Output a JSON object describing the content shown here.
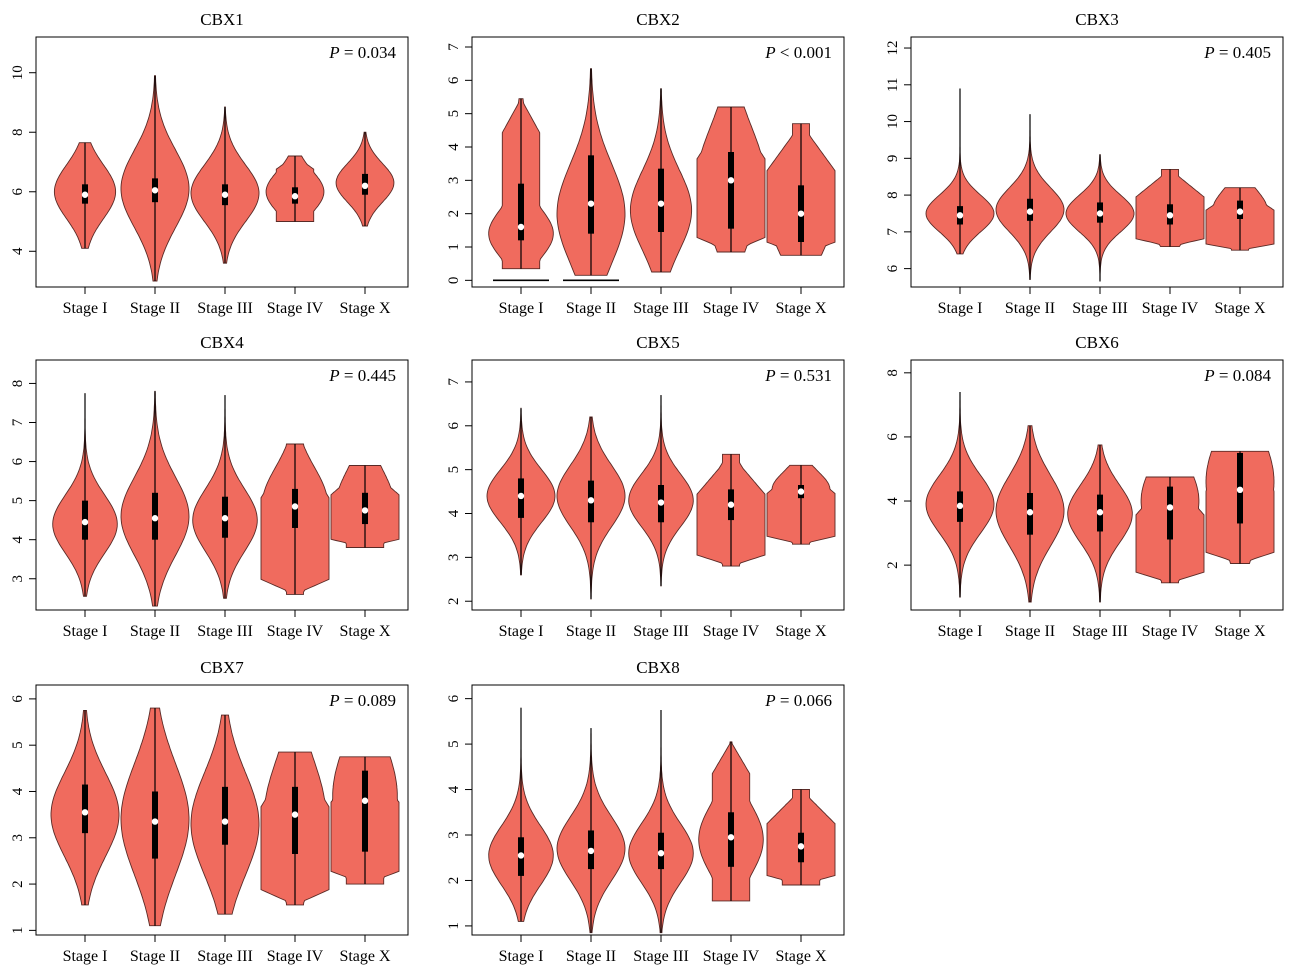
{
  "figure": {
    "panel_count": 8
  },
  "style": {
    "violin_fill": "#f06b5e",
    "violin_stroke": "#5a2a26",
    "box_color": "#000000",
    "median_color": "#ffffff"
  },
  "chart_data": [
    {
      "type": "violin",
      "title": "CBX1",
      "p_label": "P",
      "p_text": " = 0.034",
      "categories": [
        "Stage I",
        "Stage II",
        "Stage III",
        "Stage IV",
        "Stage X"
      ],
      "yticks": [
        4,
        6,
        8,
        10
      ],
      "ylim": [
        2.8,
        11.2
      ],
      "violins": [
        {
          "min": 4.1,
          "max": 7.65,
          "q1": 5.6,
          "median": 5.9,
          "q3": 6.25,
          "modes": [
            {
              "at": 6.0,
              "w": 0.9,
              "s": 0.9
            }
          ],
          "flat": false
        },
        {
          "min": 3.0,
          "max": 9.9,
          "q1": 5.65,
          "median": 6.05,
          "q3": 6.45,
          "modes": [
            {
              "at": 6.1,
              "w": 1.0,
              "s": 1.3
            }
          ],
          "flat": false
        },
        {
          "min": 3.6,
          "max": 8.85,
          "q1": 5.55,
          "median": 5.9,
          "q3": 6.25,
          "modes": [
            {
              "at": 5.95,
              "w": 1.0,
              "s": 0.95
            }
          ],
          "flat": false
        },
        {
          "min": 5.0,
          "max": 7.2,
          "q1": 5.6,
          "median": 5.85,
          "q3": 6.15,
          "modes": [
            {
              "at": 6.0,
              "w": 0.85,
              "s": 0.7
            }
          ],
          "flat": false,
          "flat_bottom": true
        },
        {
          "min": 4.85,
          "max": 8.0,
          "q1": 5.9,
          "median": 6.2,
          "q3": 6.6,
          "modes": [
            {
              "at": 6.3,
              "w": 0.85,
              "s": 0.65
            }
          ],
          "flat": false
        }
      ]
    },
    {
      "type": "violin",
      "title": "CBX2",
      "p_label": "P",
      "p_text": " < 0.001",
      "categories": [
        "Stage I",
        "Stage II",
        "Stage III",
        "Stage IV",
        "Stage X"
      ],
      "yticks": [
        0,
        1,
        2,
        3,
        4,
        5,
        6,
        7
      ],
      "ylim": [
        -0.2,
        7.3
      ],
      "extra_lines": [
        {
          "cat": 0,
          "y": 0.0
        },
        {
          "cat": 1,
          "y": 0.0
        }
      ],
      "violins": [
        {
          "min": 0.35,
          "max": 5.45,
          "q1": 1.2,
          "median": 1.6,
          "q3": 2.9,
          "modes": [
            {
              "at": 1.4,
              "w": 0.95,
              "s": 0.75
            },
            {
              "at": 4.0,
              "w": 0.3,
              "s": 0.8
            }
          ],
          "flat": false,
          "flat_bottom": true
        },
        {
          "min": 0.15,
          "max": 6.35,
          "q1": 1.4,
          "median": 2.3,
          "q3": 3.75,
          "modes": [
            {
              "at": 2.0,
              "w": 1.0,
              "s": 1.5
            }
          ],
          "flat": false
        },
        {
          "min": 0.25,
          "max": 5.75,
          "q1": 1.45,
          "median": 2.3,
          "q3": 3.35,
          "modes": [
            {
              "at": 2.1,
              "w": 0.9,
              "s": 1.2
            }
          ],
          "flat": false
        },
        {
          "min": 0.85,
          "max": 5.2,
          "q1": 1.55,
          "median": 3.0,
          "q3": 3.85,
          "modes": [
            {
              "at": 3.0,
              "w": 1.0,
              "s": 1.6
            }
          ],
          "flat": true
        },
        {
          "min": 0.75,
          "max": 4.7,
          "q1": 1.15,
          "median": 2.0,
          "q3": 2.85,
          "modes": [
            {
              "at": 2.0,
              "w": 0.95,
              "s": 1.3
            }
          ],
          "flat": true
        }
      ]
    },
    {
      "type": "violin",
      "title": "CBX3",
      "p_label": "P",
      "p_text": " = 0.405",
      "categories": [
        "Stage I",
        "Stage II",
        "Stage III",
        "Stage IV",
        "Stage X"
      ],
      "yticks": [
        6,
        7,
        8,
        9,
        10,
        11,
        12
      ],
      "ylim": [
        5.5,
        12.3
      ],
      "violins": [
        {
          "min": 6.4,
          "max": 10.9,
          "q1": 7.2,
          "median": 7.45,
          "q3": 7.7,
          "modes": [
            {
              "at": 7.5,
              "w": 1.0,
              "s": 0.5
            }
          ],
          "flat": false
        },
        {
          "min": 5.7,
          "max": 10.2,
          "q1": 7.3,
          "median": 7.55,
          "q3": 7.9,
          "modes": [
            {
              "at": 7.6,
              "w": 1.0,
              "s": 0.6
            }
          ],
          "flat": false
        },
        {
          "min": 5.65,
          "max": 9.1,
          "q1": 7.25,
          "median": 7.5,
          "q3": 7.8,
          "modes": [
            {
              "at": 7.5,
              "w": 1.0,
              "s": 0.5
            }
          ],
          "flat": false
        },
        {
          "min": 6.6,
          "max": 8.7,
          "q1": 7.2,
          "median": 7.45,
          "q3": 7.75,
          "modes": [
            {
              "at": 7.5,
              "w": 0.85,
              "s": 0.6
            }
          ],
          "flat": true
        },
        {
          "min": 6.5,
          "max": 8.2,
          "q1": 7.35,
          "median": 7.55,
          "q3": 7.85,
          "modes": [
            {
              "at": 7.6,
              "w": 0.8,
              "s": 0.55
            }
          ],
          "flat": true
        }
      ]
    },
    {
      "type": "violin",
      "title": "CBX4",
      "p_label": "P",
      "p_text": " = 0.445",
      "categories": [
        "Stage I",
        "Stage II",
        "Stage III",
        "Stage IV",
        "Stage X"
      ],
      "yticks": [
        3,
        4,
        5,
        6,
        7,
        8
      ],
      "ylim": [
        2.2,
        8.6
      ],
      "violins": [
        {
          "min": 2.55,
          "max": 7.75,
          "q1": 4.0,
          "median": 4.45,
          "q3": 5.0,
          "modes": [
            {
              "at": 4.4,
              "w": 0.95,
              "s": 0.75
            }
          ],
          "flat": false
        },
        {
          "min": 2.3,
          "max": 7.8,
          "q1": 4.0,
          "median": 4.55,
          "q3": 5.2,
          "modes": [
            {
              "at": 4.6,
              "w": 1.0,
              "s": 1.0
            }
          ],
          "flat": false
        },
        {
          "min": 2.5,
          "max": 7.7,
          "q1": 4.05,
          "median": 4.55,
          "q3": 5.1,
          "modes": [
            {
              "at": 4.5,
              "w": 0.95,
              "s": 0.8
            }
          ],
          "flat": false
        },
        {
          "min": 2.6,
          "max": 6.45,
          "q1": 4.3,
          "median": 4.85,
          "q3": 5.3,
          "modes": [
            {
              "at": 4.95,
              "w": 0.95,
              "s": 0.9
            }
          ],
          "flat": true
        },
        {
          "min": 3.8,
          "max": 5.9,
          "q1": 4.4,
          "median": 4.75,
          "q3": 5.2,
          "modes": [
            {
              "at": 4.9,
              "w": 0.85,
              "s": 0.9
            }
          ],
          "flat": true,
          "flat_bottom": true
        }
      ]
    },
    {
      "type": "violin",
      "title": "CBX5",
      "p_label": "P",
      "p_text": " = 0.531",
      "categories": [
        "Stage I",
        "Stage II",
        "Stage III",
        "Stage IV",
        "Stage X"
      ],
      "yticks": [
        2,
        3,
        4,
        5,
        6,
        7
      ],
      "ylim": [
        1.8,
        7.5
      ],
      "violins": [
        {
          "min": 2.6,
          "max": 6.4,
          "q1": 3.9,
          "median": 4.4,
          "q3": 4.8,
          "modes": [
            {
              "at": 4.4,
              "w": 1.0,
              "s": 0.6
            }
          ],
          "flat": false
        },
        {
          "min": 2.05,
          "max": 6.2,
          "q1": 3.8,
          "median": 4.3,
          "q3": 4.75,
          "modes": [
            {
              "at": 4.4,
              "w": 1.0,
              "s": 0.7
            }
          ],
          "flat": false
        },
        {
          "min": 2.35,
          "max": 6.7,
          "q1": 3.8,
          "median": 4.25,
          "q3": 4.65,
          "modes": [
            {
              "at": 4.3,
              "w": 0.95,
              "s": 0.6
            }
          ],
          "flat": false
        },
        {
          "min": 2.8,
          "max": 5.35,
          "q1": 3.85,
          "median": 4.2,
          "q3": 4.55,
          "modes": [
            {
              "at": 4.3,
              "w": 0.85,
              "s": 0.55
            }
          ],
          "flat": true
        },
        {
          "min": 3.3,
          "max": 5.1,
          "q1": 4.35,
          "median": 4.5,
          "q3": 4.65,
          "modes": [
            {
              "at": 4.55,
              "w": 0.85,
              "s": 0.4
            }
          ],
          "flat": true
        }
      ]
    },
    {
      "type": "violin",
      "title": "CBX6",
      "p_label": "P",
      "p_text": " = 0.084",
      "categories": [
        "Stage I",
        "Stage II",
        "Stage III",
        "Stage IV",
        "Stage X"
      ],
      "yticks": [
        2,
        4,
        6,
        8
      ],
      "ylim": [
        0.6,
        8.4
      ],
      "violins": [
        {
          "min": 1.0,
          "max": 7.4,
          "q1": 3.35,
          "median": 3.85,
          "q3": 4.3,
          "modes": [
            {
              "at": 3.9,
              "w": 1.0,
              "s": 0.9
            }
          ],
          "flat": false
        },
        {
          "min": 0.85,
          "max": 6.35,
          "q1": 2.95,
          "median": 3.65,
          "q3": 4.25,
          "modes": [
            {
              "at": 3.7,
              "w": 1.0,
              "s": 1.1
            }
          ],
          "flat": false
        },
        {
          "min": 0.85,
          "max": 5.75,
          "q1": 3.05,
          "median": 3.65,
          "q3": 4.2,
          "modes": [
            {
              "at": 3.6,
              "w": 0.95,
              "s": 0.9
            }
          ],
          "flat": false
        },
        {
          "min": 1.45,
          "max": 4.75,
          "q1": 2.8,
          "median": 3.8,
          "q3": 4.45,
          "modes": [
            {
              "at": 4.0,
              "w": 0.85,
              "s": 1.2
            }
          ],
          "flat": true
        },
        {
          "min": 2.05,
          "max": 5.55,
          "q1": 3.3,
          "median": 4.35,
          "q3": 5.5,
          "modes": [
            {
              "at": 4.6,
              "w": 1.0,
              "s": 1.6
            }
          ],
          "flat": true
        }
      ]
    },
    {
      "type": "violin",
      "title": "CBX7",
      "p_label": "P",
      "p_text": " = 0.089",
      "categories": [
        "Stage I",
        "Stage II",
        "Stage III",
        "Stage IV",
        "Stage X"
      ],
      "yticks": [
        1,
        2,
        3,
        4,
        5,
        6
      ],
      "ylim": [
        0.9,
        6.3
      ],
      "violins": [
        {
          "min": 1.55,
          "max": 5.75,
          "q1": 3.1,
          "median": 3.55,
          "q3": 4.15,
          "modes": [
            {
              "at": 3.5,
              "w": 1.0,
              "s": 0.9
            }
          ],
          "flat": false
        },
        {
          "min": 1.1,
          "max": 5.8,
          "q1": 2.55,
          "median": 3.35,
          "q3": 4.0,
          "modes": [
            {
              "at": 3.4,
              "w": 1.0,
              "s": 1.2
            }
          ],
          "flat": false
        },
        {
          "min": 1.35,
          "max": 5.65,
          "q1": 2.85,
          "median": 3.35,
          "q3": 4.1,
          "modes": [
            {
              "at": 3.3,
              "w": 1.0,
              "s": 1.1
            }
          ],
          "flat": false
        },
        {
          "min": 1.55,
          "max": 4.85,
          "q1": 2.65,
          "median": 3.5,
          "q3": 4.1,
          "modes": [
            {
              "at": 3.5,
              "w": 0.9,
              "s": 1.2
            }
          ],
          "flat": true
        },
        {
          "min": 2.0,
          "max": 4.75,
          "q1": 2.7,
          "median": 3.8,
          "q3": 4.45,
          "modes": [
            {
              "at": 3.9,
              "w": 0.95,
              "s": 1.2
            }
          ],
          "flat": true,
          "flat_bottom": true
        }
      ]
    },
    {
      "type": "violin",
      "title": "CBX8",
      "p_label": "P",
      "p_text": " = 0.066",
      "categories": [
        "Stage I",
        "Stage II",
        "Stage III",
        "Stage IV",
        "Stage X"
      ],
      "yticks": [
        1,
        2,
        3,
        4,
        5,
        6
      ],
      "ylim": [
        0.8,
        6.3
      ],
      "violins": [
        {
          "min": 1.1,
          "max": 5.8,
          "q1": 2.1,
          "median": 2.55,
          "q3": 2.95,
          "modes": [
            {
              "at": 2.55,
              "w": 0.95,
              "s": 0.65
            }
          ],
          "flat": false
        },
        {
          "min": 0.85,
          "max": 5.35,
          "q1": 2.25,
          "median": 2.65,
          "q3": 3.1,
          "modes": [
            {
              "at": 2.7,
              "w": 1.0,
              "s": 0.7
            }
          ],
          "flat": false
        },
        {
          "min": 0.85,
          "max": 5.75,
          "q1": 2.25,
          "median": 2.6,
          "q3": 3.05,
          "modes": [
            {
              "at": 2.6,
              "w": 0.95,
              "s": 0.65
            }
          ],
          "flat": false
        },
        {
          "min": 1.55,
          "max": 5.05,
          "q1": 2.3,
          "median": 2.95,
          "q3": 3.5,
          "modes": [
            {
              "at": 2.9,
              "w": 0.95,
              "s": 0.8
            }
          ],
          "flat": false,
          "flat_bottom": true
        },
        {
          "min": 1.9,
          "max": 4.0,
          "q1": 2.4,
          "median": 2.75,
          "q3": 3.05,
          "modes": [
            {
              "at": 2.8,
              "w": 0.85,
              "s": 0.6
            }
          ],
          "flat": true,
          "flat_bottom": true
        }
      ]
    }
  ]
}
